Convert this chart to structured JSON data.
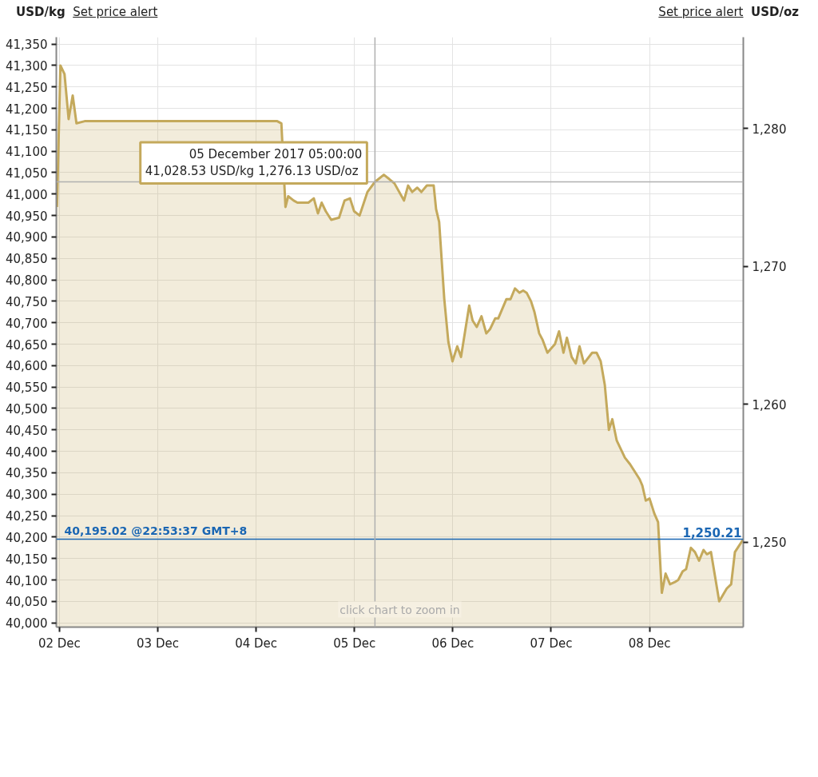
{
  "chart_data": {
    "type": "area",
    "ylabel": "USD/kg",
    "y2label": "USD/oz",
    "x": [
      "2017-12-01T23:25",
      "2017-12-02T00:15",
      "2017-12-02T01:15",
      "2017-12-02T02:15",
      "2017-12-02T03:15",
      "2017-12-02T04:10",
      "2017-12-02T06:10",
      "2017-12-04T05:10",
      "2017-12-04T06:10",
      "2017-12-04T07:10",
      "2017-12-04T07:50",
      "2017-12-04T09:10",
      "2017-12-04T10:05",
      "2017-12-04T11:45",
      "2017-12-04T12:45",
      "2017-12-04T14:05",
      "2017-12-04T15:05",
      "2017-12-04T16:00",
      "2017-12-04T17:00",
      "2017-12-04T18:20",
      "2017-12-04T20:15",
      "2017-12-04T21:35",
      "2017-12-04T22:55",
      "2017-12-04T23:55",
      "2017-12-05T01:15",
      "2017-12-05T03:10",
      "2017-12-05T05:00",
      "2017-12-05T07:10",
      "2017-12-05T08:30",
      "2017-12-05T09:45",
      "2017-12-05T12:05",
      "2017-12-05T13:05",
      "2017-12-05T14:05",
      "2017-12-05T15:20",
      "2017-12-05T16:20",
      "2017-12-05T17:40",
      "2017-12-05T19:20",
      "2017-12-05T19:55",
      "2017-12-05T20:40",
      "2017-12-05T21:55",
      "2017-12-05T22:55",
      "2017-12-05T23:55",
      "2017-12-06T01:05",
      "2017-12-06T02:00",
      "2017-12-06T04:00",
      "2017-12-06T04:50",
      "2017-12-06T05:50",
      "2017-12-06T07:00",
      "2017-12-06T08:10",
      "2017-12-06T09:05",
      "2017-12-06T10:20",
      "2017-12-06T11:05",
      "2017-12-06T13:05",
      "2017-12-06T14:05",
      "2017-12-06T15:10",
      "2017-12-06T16:15",
      "2017-12-06T17:10",
      "2017-12-06T18:00",
      "2017-12-06T19:05",
      "2017-12-06T19:55",
      "2017-12-06T21:05",
      "2017-12-06T21:55",
      "2017-12-06T23:05",
      "2017-12-07T00:55",
      "2017-12-07T01:55",
      "2017-12-07T03:00",
      "2017-12-07T03:50",
      "2017-12-07T05:00",
      "2017-12-07T06:00",
      "2017-12-07T06:55",
      "2017-12-07T08:00",
      "2017-12-07T10:00",
      "2017-12-07T11:05",
      "2017-12-07T12:05",
      "2017-12-07T13:05",
      "2017-12-07T14:05",
      "2017-12-07T14:55",
      "2017-12-07T16:00",
      "2017-12-07T18:00",
      "2017-12-07T19:15",
      "2017-12-07T20:15",
      "2017-12-07T21:35",
      "2017-12-07T22:15",
      "2017-12-07T23:05",
      "2017-12-08T00:00",
      "2017-12-08T01:10",
      "2017-12-08T02:05",
      "2017-12-08T03:00",
      "2017-12-08T03:55",
      "2017-12-08T05:00",
      "2017-12-08T06:10",
      "2017-12-08T07:00",
      "2017-12-08T08:05",
      "2017-12-08T08:55",
      "2017-12-08T10:05",
      "2017-12-08T11:05",
      "2017-12-08T12:05",
      "2017-12-08T13:10",
      "2017-12-08T14:00",
      "2017-12-08T15:00",
      "2017-12-08T17:00",
      "2017-12-08T18:50",
      "2017-12-08T19:55",
      "2017-12-08T20:50",
      "2017-12-08T22:53"
    ],
    "series": [
      {
        "color": "#c4a95c",
        "values": [
          40970,
          41300,
          41280,
          41175,
          41230,
          41165,
          41170,
          41170,
          41165,
          40970,
          40995,
          40985,
          40980,
          40980,
          40980,
          40990,
          40955,
          40980,
          40960,
          40940,
          40945,
          40985,
          40990,
          40960,
          40950,
          41005,
          41028.53,
          41045,
          41035,
          41025,
          40985,
          41020,
          41005,
          41015,
          41005,
          41020,
          41020,
          40965,
          40935,
          40755,
          40655,
          40610,
          40645,
          40620,
          40740,
          40705,
          40690,
          40715,
          40675,
          40685,
          40710,
          40710,
          40755,
          40755,
          40780,
          40770,
          40775,
          40770,
          40750,
          40725,
          40675,
          40660,
          40630,
          40650,
          40680,
          40630,
          40665,
          40620,
          40605,
          40645,
          40605,
          40630,
          40630,
          40610,
          40555,
          40450,
          40475,
          40425,
          40385,
          40370,
          40355,
          40335,
          40320,
          40285,
          40290,
          40255,
          40235,
          40070,
          40115,
          40090,
          40095,
          40100,
          40120,
          40125,
          40175,
          40165,
          40145,
          40170,
          40160,
          40165,
          40050,
          40080,
          40090,
          40165,
          40195.02
        ]
      }
    ],
    "xlim": [
      "2017-12-01T23:15",
      "2017-12-08T22:53"
    ],
    "xticks": [
      {
        "value": "2017-12-02",
        "label": "02 Dec"
      },
      {
        "value": "2017-12-03",
        "label": "03 Dec"
      },
      {
        "value": "2017-12-04",
        "label": "04 Dec"
      },
      {
        "value": "2017-12-05",
        "label": "05 Dec"
      },
      {
        "value": "2017-12-06",
        "label": "06 Dec"
      },
      {
        "value": "2017-12-07",
        "label": "07 Dec"
      },
      {
        "value": "2017-12-08",
        "label": "08 Dec"
      }
    ],
    "ylim": [
      39990,
      41366
    ],
    "yticks": [
      {
        "value": 40000,
        "label": "40,000"
      },
      {
        "value": 40050,
        "label": "40,050"
      },
      {
        "value": 40100,
        "label": "40,100"
      },
      {
        "value": 40150,
        "label": "40,150"
      },
      {
        "value": 40200,
        "label": "40,200"
      },
      {
        "value": 40250,
        "label": "40,250"
      },
      {
        "value": 40300,
        "label": "40,300"
      },
      {
        "value": 40350,
        "label": "40,350"
      },
      {
        "value": 40400,
        "label": "40,400"
      },
      {
        "value": 40450,
        "label": "40,450"
      },
      {
        "value": 40500,
        "label": "40,500"
      },
      {
        "value": 40550,
        "label": "40,550"
      },
      {
        "value": 40600,
        "label": "40,600"
      },
      {
        "value": 40650,
        "label": "40,650"
      },
      {
        "value": 40700,
        "label": "40,700"
      },
      {
        "value": 40750,
        "label": "40,750"
      },
      {
        "value": 40800,
        "label": "40,800"
      },
      {
        "value": 40850,
        "label": "40,850"
      },
      {
        "value": 40900,
        "label": "40,900"
      },
      {
        "value": 40950,
        "label": "40,950"
      },
      {
        "value": 41000,
        "label": "41,000"
      },
      {
        "value": 41050,
        "label": "41,050"
      },
      {
        "value": 41100,
        "label": "41,100"
      },
      {
        "value": 41150,
        "label": "41,150"
      },
      {
        "value": 41200,
        "label": "41,200"
      },
      {
        "value": 41250,
        "label": "41,250"
      },
      {
        "value": 41300,
        "label": "41,300"
      },
      {
        "value": 41350,
        "label": "41,350"
      }
    ],
    "y2lim": [
      1243.84,
      1286.64
    ],
    "y2ticks": [
      {
        "value": 1250,
        "label": "1,250"
      },
      {
        "value": 1260,
        "label": "1,260"
      },
      {
        "value": 1270,
        "label": "1,270"
      },
      {
        "value": 1280,
        "label": "1,280"
      }
    ],
    "grid": true,
    "ref_lines": [
      {
        "axis": "y",
        "value": 40195.02,
        "label": "40,195.02 @22:53:37 GMT+8",
        "color": "#1a66b3"
      },
      {
        "axis": "x",
        "value": "2017-12-05T05:00",
        "label": null,
        "color": "#b0b0b0"
      },
      {
        "axis": "y",
        "value": 41028.53,
        "label": null,
        "color": "#b0b0b0"
      }
    ],
    "annotations": [
      "Set price alert",
      "Set price alert",
      "click chart to zoom in",
      {
        "text": "05 December 2017 05:00:00\n41,028.53 USD/kg  1,276.13 USD/oz",
        "x": "2017-12-05T05:00",
        "y": 41028.53
      },
      {
        "text": "1,250.21",
        "x": "2017-12-08T22:53",
        "y": 40195.02
      }
    ]
  }
}
